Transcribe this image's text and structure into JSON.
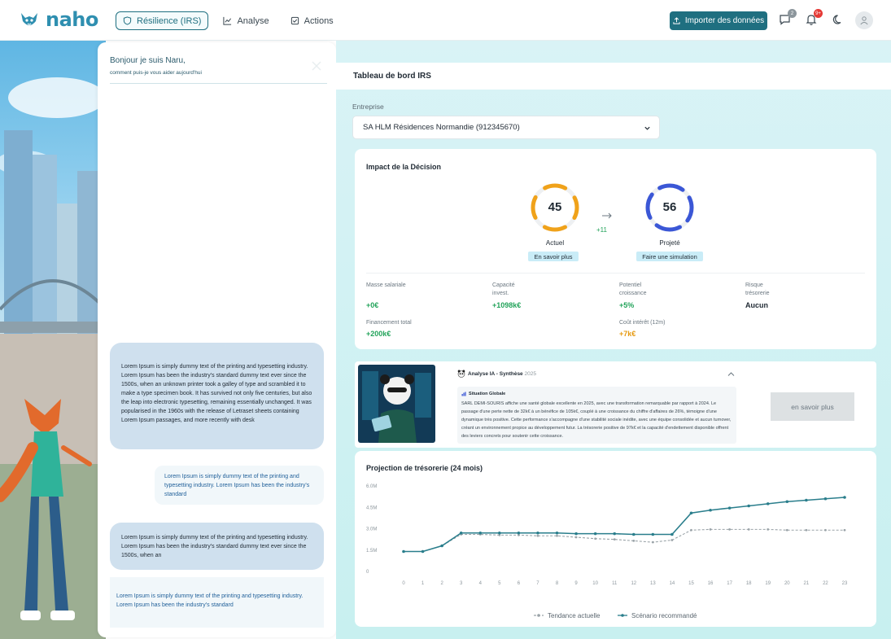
{
  "brand": {
    "name": "naho"
  },
  "nav": [
    {
      "label": "Résilience (IRS)",
      "icon": "shield-icon",
      "active": true
    },
    {
      "label": "Analyse",
      "icon": "chart-icon",
      "active": false
    },
    {
      "label": "Actions",
      "icon": "checkbox-icon",
      "active": false
    }
  ],
  "header": {
    "import_label": "Importer des données",
    "messages_badge": "2",
    "notifications_badge": "9+"
  },
  "chat": {
    "greeting": "Bonjour je suis Naru,",
    "subtitle": "comment puis-je vous aider aujourd'hui",
    "messages": [
      {
        "role": "bot",
        "text": "Lorem Ipsum is simply dummy text of the printing and typesetting industry. Lorem Ipsum has been the industry's standard dummy text ever since the 1500s, when an unknown printer took a galley of type and scrambled it to make a type specimen book. It has survived not only five centuries, but also the leap into electronic typesetting, remaining essentially unchanged. It was popularised in the 1960s with the release of Letraset sheets containing Lorem Ipsum passages, and more recently with desk"
      },
      {
        "role": "user",
        "text": "Lorem Ipsum is simply dummy text of the printing and typesetting industry. Lorem Ipsum has been the industry's standard"
      },
      {
        "role": "bot",
        "text": "Lorem Ipsum is simply dummy text of the printing and typesetting industry. Lorem Ipsum has been the industry's standard dummy text ever since the 1500s, when an"
      },
      {
        "role": "user",
        "text": "Lorem Ipsum is simply dummy text of the printing and typesetting industry. Lorem Ipsum has been the industry's standard"
      }
    ]
  },
  "dashboard": {
    "title": "Tableau de bord IRS",
    "company_label": "Entreprise",
    "company_value": "SA HLM Résidences Normandie (912345670)"
  },
  "impact": {
    "title": "Impact de la Décision",
    "current": {
      "value": "45",
      "label": "Actuel",
      "button": "En savoir plus",
      "color": "#f0a21a"
    },
    "projected": {
      "value": "56",
      "label": "Projeté",
      "button": "Faire une simulation",
      "color": "#3b57d6"
    },
    "delta": "+11",
    "metrics": [
      {
        "label": "Masse salariale",
        "value": "+0€",
        "tone": "green"
      },
      {
        "label": "Capacité invest.",
        "value": "+1098k€",
        "tone": "green"
      },
      {
        "label": "Potentiel croissance",
        "value": "+5%",
        "tone": "green"
      },
      {
        "label": "Risque trésorerie",
        "value": "Aucun",
        "tone": "dark"
      },
      {
        "label": "Financement total",
        "value": "+200k€",
        "tone": "green"
      },
      {
        "label": "Coût intérêt (12m)",
        "value": "+7k€",
        "tone": "orange"
      }
    ]
  },
  "ia": {
    "title": "Analyse IA - Synthèse",
    "year": "2025",
    "section_title": "Situation Globale",
    "text": "SARL DEMI-SOURIS affiche une santé globale excellente en 2025, avec une transformation remarquable par rapport à 2024. Le passage d'une perte nette de 32k€ à un bénéfice de 105k€, couplé à une croissance du chiffre d'affaires de 26%, témoigne d'une dynamique très positive. Cette performance s'accompagne d'une stabilité sociale inédite, avec une équipe consolidée et aucun turnover, créant un environnement propice au développement futur. La trésorerie positive de 97k€ et la capacité d'endettement disponible offrent des leviers concrets pour soutenir cette croissance.",
    "more_label": "en savoir plus"
  },
  "chart_data": {
    "type": "line",
    "title": "Projection de trésorerie (24 mois)",
    "x": [
      0,
      1,
      2,
      3,
      4,
      5,
      6,
      7,
      8,
      9,
      10,
      11,
      12,
      13,
      14,
      15,
      16,
      17,
      18,
      19,
      20,
      21,
      22,
      23
    ],
    "y_ticks": [
      "0",
      "1.5M",
      "3.0M",
      "4.5M",
      "6.0M"
    ],
    "ylim": [
      0,
      6000000
    ],
    "series": [
      {
        "name": "Tendance actuelle",
        "color": "#9aa3a8",
        "dashed": true,
        "values": [
          1400000,
          1400000,
          1800000,
          2600000,
          2600000,
          2550000,
          2550000,
          2500000,
          2500000,
          2400000,
          2300000,
          2250000,
          2150000,
          2050000,
          2200000,
          2900000,
          2950000,
          2950000,
          2950000,
          2950000,
          2900000,
          2900000,
          2900000,
          2900000
        ]
      },
      {
        "name": "Scénario recommandé",
        "color": "#2a7e8c",
        "dashed": false,
        "values": [
          1400000,
          1400000,
          1800000,
          2700000,
          2700000,
          2700000,
          2700000,
          2700000,
          2700000,
          2650000,
          2650000,
          2650000,
          2600000,
          2600000,
          2600000,
          4100000,
          4300000,
          4450000,
          4600000,
          4750000,
          4900000,
          5000000,
          5100000,
          5200000
        ]
      }
    ],
    "legend": "bottom-center"
  }
}
